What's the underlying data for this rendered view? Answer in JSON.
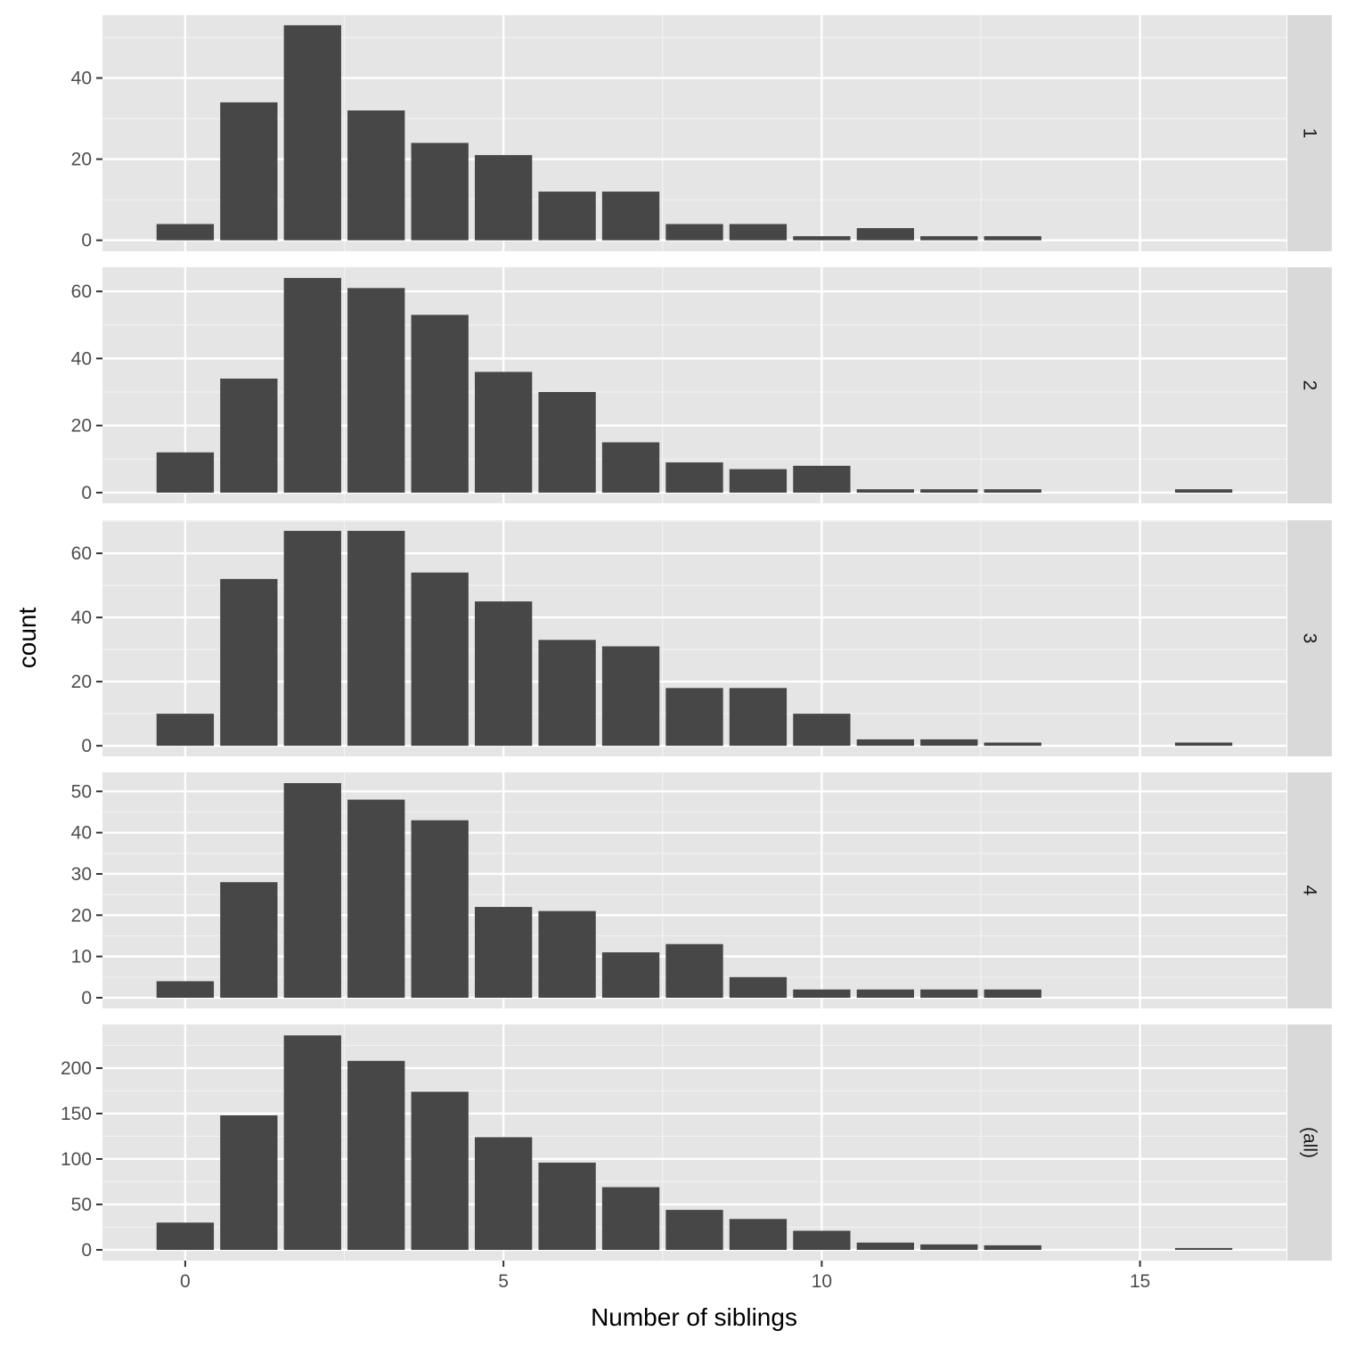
{
  "chart_data": {
    "type": "bar",
    "xlabel": "Number of siblings",
    "ylabel": "count",
    "xlim": [
      -1.3,
      17.3
    ],
    "x_ticks": [
      0,
      5,
      10,
      15
    ],
    "x_tick_labels": [
      "0",
      "5",
      "10",
      "15"
    ],
    "x": [
      0,
      1,
      2,
      3,
      4,
      5,
      6,
      7,
      8,
      9,
      10,
      11,
      12,
      13,
      16
    ],
    "bar_color": "#474747",
    "panel_background": "#e5e5e5",
    "strip_background": "#d9d9d9",
    "grid": true,
    "facet_position": "right",
    "panels": [
      {
        "strip": "1",
        "ylim": [
          -2.7,
          55.5
        ],
        "y_ticks": [
          0,
          20,
          40
        ],
        "y_tick_labels": [
          "0",
          "20",
          "40"
        ],
        "values": [
          4,
          34,
          53,
          32,
          24,
          21,
          12,
          12,
          4,
          4,
          1,
          3,
          1,
          1,
          0
        ]
      },
      {
        "strip": "2",
        "ylim": [
          -3.2,
          67.2
        ],
        "y_ticks": [
          0,
          20,
          40,
          60
        ],
        "y_tick_labels": [
          "0",
          "20",
          "40",
          "60"
        ],
        "values": [
          12,
          34,
          64,
          61,
          53,
          36,
          30,
          15,
          9,
          7,
          8,
          1,
          1,
          1,
          1
        ]
      },
      {
        "strip": "3",
        "ylim": [
          -3.3,
          70.3
        ],
        "y_ticks": [
          0,
          20,
          40,
          60
        ],
        "y_tick_labels": [
          "0",
          "20",
          "40",
          "60"
        ],
        "values": [
          10,
          52,
          67,
          67,
          54,
          45,
          33,
          31,
          18,
          18,
          10,
          2,
          2,
          1,
          1
        ]
      },
      {
        "strip": "4",
        "ylim": [
          -2.6,
          54.6
        ],
        "y_ticks": [
          0,
          10,
          20,
          30,
          40,
          50
        ],
        "y_tick_labels": [
          "0",
          "10",
          "20",
          "30",
          "40",
          "50"
        ],
        "values": [
          4,
          28,
          52,
          48,
          43,
          22,
          21,
          11,
          13,
          5,
          2,
          2,
          2,
          2,
          0
        ]
      },
      {
        "strip": "(all)",
        "ylim": [
          -11.8,
          248
        ],
        "y_ticks": [
          0,
          50,
          100,
          150,
          200
        ],
        "y_tick_labels": [
          "0",
          "50",
          "100",
          "150",
          "200"
        ],
        "values": [
          30,
          148,
          236,
          208,
          174,
          124,
          96,
          69,
          44,
          34,
          21,
          8,
          6,
          5,
          2
        ]
      }
    ]
  }
}
